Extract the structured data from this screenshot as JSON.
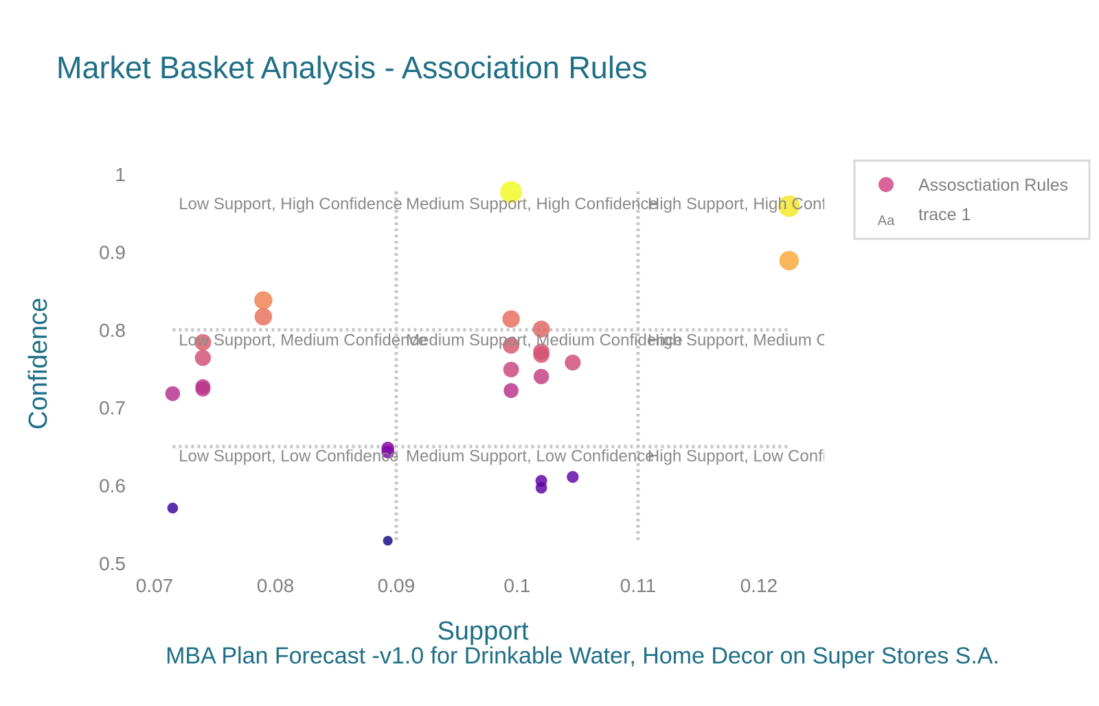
{
  "chart_data": {
    "type": "scatter",
    "title": "Market Basket Analysis - Association Rules",
    "subtitle": "MBA Plan Forecast -v1.0 for Drinkable Water, Home Decor on Super Stores S.A.",
    "xlabel": "Support",
    "ylabel": "Confidence",
    "xlim": [
      0.07,
      0.127
    ],
    "ylim": [
      0.5,
      1.0
    ],
    "x_ticks": [
      "0.07",
      "0.08",
      "0.09",
      "0.1",
      "0.11",
      "0.12"
    ],
    "x_tick_values": [
      0.07,
      0.08,
      0.09,
      0.1,
      0.11,
      0.12
    ],
    "y_ticks": [
      "0.5",
      "0.6",
      "0.7",
      "0.8",
      "0.9",
      "1"
    ],
    "y_tick_values": [
      0.5,
      0.6,
      0.7,
      0.8,
      0.9,
      1.0
    ],
    "grid": false,
    "legend": {
      "placement": "top-right",
      "entries": [
        {
          "name": "Assosctiation Rules",
          "symbol": "marker"
        },
        {
          "name": "trace 1",
          "symbol": "text",
          "symbol_text": "Aa"
        }
      ]
    },
    "color_scale": "plasma (by confidence)",
    "series": [
      {
        "name": "Assosctiation Rules",
        "points": [
          {
            "x": 0.0715,
            "y": 0.571
          },
          {
            "x": 0.0715,
            "y": 0.718
          },
          {
            "x": 0.074,
            "y": 0.724
          },
          {
            "x": 0.074,
            "y": 0.727
          },
          {
            "x": 0.074,
            "y": 0.764
          },
          {
            "x": 0.074,
            "y": 0.784
          },
          {
            "x": 0.079,
            "y": 0.817
          },
          {
            "x": 0.079,
            "y": 0.838
          },
          {
            "x": 0.0893,
            "y": 0.529
          },
          {
            "x": 0.0893,
            "y": 0.643
          },
          {
            "x": 0.0893,
            "y": 0.648
          },
          {
            "x": 0.0995,
            "y": 0.722
          },
          {
            "x": 0.0995,
            "y": 0.749
          },
          {
            "x": 0.0995,
            "y": 0.78
          },
          {
            "x": 0.0995,
            "y": 0.814
          },
          {
            "x": 0.0995,
            "y": 0.977
          },
          {
            "x": 0.102,
            "y": 0.597
          },
          {
            "x": 0.102,
            "y": 0.606
          },
          {
            "x": 0.102,
            "y": 0.74
          },
          {
            "x": 0.102,
            "y": 0.768
          },
          {
            "x": 0.102,
            "y": 0.772
          },
          {
            "x": 0.102,
            "y": 0.801
          },
          {
            "x": 0.1046,
            "y": 0.611
          },
          {
            "x": 0.1046,
            "y": 0.758
          },
          {
            "x": 0.1225,
            "y": 0.889
          },
          {
            "x": 0.1225,
            "y": 0.959
          }
        ]
      }
    ],
    "reference_lines": {
      "vertical_x": [
        0.09,
        0.11
      ],
      "vertical_y_range": [
        0.53,
        0.98
      ],
      "horizontal_y": [
        0.8,
        0.65
      ],
      "horizontal_x_range": [
        0.0715,
        0.1225
      ]
    },
    "annotations": [
      {
        "text": "Low Support, High Confidence",
        "x": 0.072,
        "y": 0.955
      },
      {
        "text": "Medium Support, High Confidence",
        "x": 0.0908,
        "y": 0.955
      },
      {
        "text": "High Support, High Confidence",
        "x": 0.1108,
        "y": 0.955
      },
      {
        "text": "Low Support, Medium Confidence",
        "x": 0.072,
        "y": 0.78
      },
      {
        "text": "Medium Support, Medium Confidence",
        "x": 0.0908,
        "y": 0.78
      },
      {
        "text": "High Support, Medium Confidence",
        "x": 0.1108,
        "y": 0.78
      },
      {
        "text": "Low Support, Low Confidence",
        "x": 0.072,
        "y": 0.631
      },
      {
        "text": "Medium Support, Low Confidence",
        "x": 0.0908,
        "y": 0.631
      },
      {
        "text": "High Support, Low Confidence",
        "x": 0.1108,
        "y": 0.631
      }
    ]
  }
}
